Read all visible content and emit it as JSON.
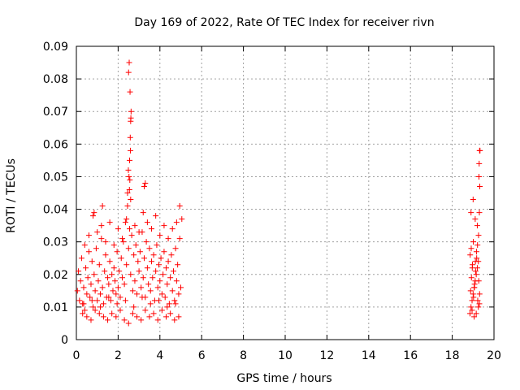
{
  "chart_data": {
    "type": "scatter",
    "title": "Day 169 of 2022, Rate Of TEC Index for receiver rivn",
    "xlabel": "GPS time / hours",
    "ylabel": "ROTI / TECUs",
    "xlim": [
      0,
      20
    ],
    "ylim": [
      0,
      0.09
    ],
    "grid": true,
    "marker": "+",
    "color": "#ff0000",
    "x_ticks": [
      {
        "value": 0,
        "label": "0"
      },
      {
        "value": 2,
        "label": "2"
      },
      {
        "value": 4,
        "label": "4"
      },
      {
        "value": 6,
        "label": "6"
      },
      {
        "value": 8,
        "label": "8"
      },
      {
        "value": 10,
        "label": "10"
      },
      {
        "value": 12,
        "label": "12"
      },
      {
        "value": 14,
        "label": "14"
      },
      {
        "value": 16,
        "label": "16"
      },
      {
        "value": 18,
        "label": "18"
      },
      {
        "value": 20,
        "label": "20"
      }
    ],
    "y_ticks": [
      {
        "value": 0,
        "label": "0"
      },
      {
        "value": 0.01,
        "label": "0.01"
      },
      {
        "value": 0.02,
        "label": "0.02"
      },
      {
        "value": 0.03,
        "label": "0.03"
      },
      {
        "value": 0.04,
        "label": "0.04"
      },
      {
        "value": 0.05,
        "label": "0.05"
      },
      {
        "value": 0.06,
        "label": "0.06"
      },
      {
        "value": 0.07,
        "label": "0.07"
      },
      {
        "value": 0.08,
        "label": "0.08"
      },
      {
        "value": 0.09,
        "label": "0.09"
      }
    ],
    "series": [
      {
        "name": "ROTI",
        "x": [
          0.05,
          0.1,
          0.15,
          0.2,
          0.25,
          0.3,
          0.35,
          0.4,
          0.45,
          0.5,
          0.55,
          0.6,
          0.65,
          0.7,
          0.75,
          0.8,
          0.85,
          0.9,
          0.95,
          1.0,
          1.05,
          1.1,
          1.15,
          1.2,
          1.25,
          1.3,
          1.35,
          1.4,
          1.45,
          1.5,
          1.55,
          1.6,
          1.65,
          1.7,
          1.75,
          1.8,
          1.85,
          1.9,
          1.95,
          2.0,
          2.05,
          2.1,
          2.15,
          2.2,
          2.25,
          2.3,
          2.35,
          2.4,
          2.45,
          2.5,
          2.55,
          2.6,
          2.65,
          2.7,
          2.75,
          2.8,
          2.85,
          2.9,
          2.95,
          3.0,
          3.05,
          3.1,
          3.15,
          3.2,
          3.25,
          3.3,
          3.35,
          3.4,
          3.45,
          3.5,
          3.55,
          3.6,
          3.65,
          3.7,
          3.75,
          3.8,
          3.85,
          3.9,
          3.95,
          4.0,
          4.05,
          4.1,
          4.15,
          4.2,
          4.25,
          4.3,
          4.35,
          4.4,
          4.45,
          4.5,
          4.55,
          4.6,
          4.65,
          4.7,
          4.75,
          4.8,
          4.85,
          4.9,
          4.95,
          5.0,
          0.3,
          0.5,
          0.7,
          0.9,
          1.1,
          1.3,
          1.5,
          1.7,
          1.9,
          2.1,
          2.3,
          2.5,
          2.7,
          2.9,
          3.1,
          3.3,
          3.5,
          3.7,
          3.9,
          4.1,
          4.3,
          4.5,
          4.7,
          4.9,
          0.4,
          0.6,
          0.8,
          1.0,
          1.2,
          1.4,
          1.6,
          1.8,
          2.0,
          2.2,
          2.4,
          2.6,
          2.8,
          3.0,
          3.2,
          3.4,
          3.6,
          3.8,
          4.0,
          4.2,
          4.4,
          4.6,
          4.8,
          5.05,
          0.35,
          0.75,
          1.15,
          1.55,
          1.95,
          2.35,
          2.75,
          3.15,
          3.55,
          3.95,
          4.35,
          4.75,
          0.85,
          1.25,
          2.45,
          2.52,
          2.55,
          2.58,
          2.6,
          2.62,
          2.57,
          2.5,
          2.53,
          2.56,
          2.59,
          2.49,
          2.61,
          2.54,
          3.25,
          3.3,
          4.95,
          18.85,
          18.9,
          18.95,
          19.0,
          19.05,
          19.1,
          19.15,
          19.2,
          19.25,
          19.3,
          18.88,
          18.92,
          18.97,
          19.02,
          19.07,
          19.12,
          19.17,
          19.22,
          19.27,
          18.86,
          18.91,
          18.96,
          19.01,
          19.06,
          19.11,
          19.16,
          19.21,
          19.26,
          19.31,
          18.9,
          19.0,
          19.1,
          19.2,
          18.95,
          19.05,
          19.15,
          19.25,
          19.3,
          19.32,
          19.28,
          19.33,
          19.29,
          19.31
        ],
        "y": [
          0.015,
          0.021,
          0.012,
          0.018,
          0.025,
          0.011,
          0.016,
          0.009,
          0.022,
          0.014,
          0.019,
          0.027,
          0.013,
          0.017,
          0.024,
          0.01,
          0.02,
          0.015,
          0.028,
          0.012,
          0.018,
          0.023,
          0.014,
          0.031,
          0.016,
          0.011,
          0.021,
          0.026,
          0.013,
          0.019,
          0.017,
          0.024,
          0.012,
          0.02,
          0.015,
          0.022,
          0.018,
          0.014,
          0.027,
          0.016,
          0.021,
          0.013,
          0.025,
          0.019,
          0.03,
          0.017,
          0.036,
          0.023,
          0.041,
          0.028,
          0.034,
          0.02,
          0.032,
          0.015,
          0.026,
          0.018,
          0.029,
          0.014,
          0.024,
          0.021,
          0.027,
          0.016,
          0.033,
          0.019,
          0.025,
          0.013,
          0.03,
          0.022,
          0.017,
          0.028,
          0.015,
          0.024,
          0.019,
          0.026,
          0.012,
          0.021,
          0.029,
          0.016,
          0.023,
          0.018,
          0.025,
          0.014,
          0.02,
          0.027,
          0.013,
          0.022,
          0.017,
          0.024,
          0.011,
          0.019,
          0.026,
          0.015,
          0.021,
          0.012,
          0.028,
          0.018,
          0.023,
          0.014,
          0.031,
          0.016,
          0.008,
          0.007,
          0.006,
          0.009,
          0.008,
          0.007,
          0.006,
          0.008,
          0.007,
          0.009,
          0.006,
          0.005,
          0.008,
          0.007,
          0.006,
          0.009,
          0.007,
          0.008,
          0.006,
          0.009,
          0.007,
          0.008,
          0.006,
          0.007,
          0.029,
          0.032,
          0.038,
          0.033,
          0.035,
          0.03,
          0.036,
          0.029,
          0.034,
          0.031,
          0.037,
          0.043,
          0.035,
          0.033,
          0.039,
          0.036,
          0.034,
          0.038,
          0.032,
          0.035,
          0.031,
          0.034,
          0.036,
          0.037,
          0.011,
          0.012,
          0.01,
          0.013,
          0.011,
          0.012,
          0.01,
          0.013,
          0.011,
          0.012,
          0.01,
          0.011,
          0.039,
          0.041,
          0.045,
          0.05,
          0.055,
          0.062,
          0.067,
          0.07,
          0.076,
          0.082,
          0.085,
          0.049,
          0.058,
          0.052,
          0.068,
          0.046,
          0.047,
          0.048,
          0.041,
          0.008,
          0.01,
          0.012,
          0.014,
          0.016,
          0.018,
          0.02,
          0.022,
          0.024,
          0.011,
          0.015,
          0.019,
          0.023,
          0.013,
          0.017,
          0.021,
          0.025,
          0.012,
          0.018,
          0.026,
          0.028,
          0.022,
          0.03,
          0.016,
          0.024,
          0.027,
          0.029,
          0.032,
          0.014,
          0.039,
          0.043,
          0.037,
          0.035,
          0.009,
          0.007,
          0.008,
          0.01,
          0.039,
          0.047,
          0.05,
          0.058,
          0.054,
          0.058
        ]
      }
    ]
  }
}
